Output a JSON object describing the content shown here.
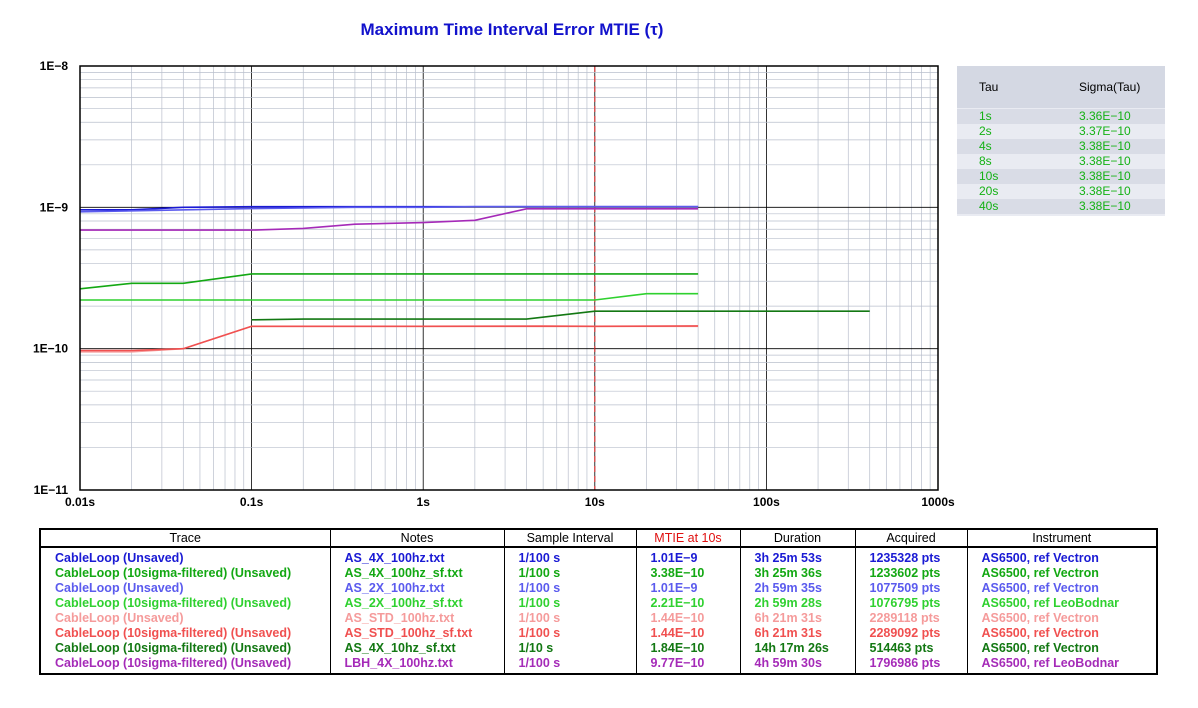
{
  "chart_data": {
    "type": "line",
    "title": "Maximum Time Interval Error MTIE (τ)",
    "xscale": "log",
    "yscale": "log",
    "xlim": [
      0.01,
      1000
    ],
    "ylim": [
      1e-11,
      1e-08
    ],
    "x_tick_labels": [
      "0.01s",
      "0.1s",
      "1s",
      "10s",
      "100s",
      "1000s"
    ],
    "y_tick_labels": [
      "1E−8",
      "1E−9",
      "1E−10",
      "1E−11"
    ],
    "grid": true,
    "marker_x": 10,
    "series": [
      {
        "color": "#1a1ad4",
        "x": [
          0.01,
          0.02,
          0.04,
          0.1,
          1,
          10,
          40
        ],
        "y": [
          9.6e-10,
          9.6e-10,
          1e-09,
          1.01e-09,
          1.01e-09,
          1.01e-09,
          1.01e-09
        ]
      },
      {
        "color": "#13a813",
        "x": [
          0.01,
          0.02,
          0.04,
          0.1,
          1,
          10,
          40
        ],
        "y": [
          2.65e-10,
          2.9e-10,
          2.9e-10,
          3.38e-10,
          3.38e-10,
          3.38e-10,
          3.38e-10
        ]
      },
      {
        "color": "#5b5bee",
        "x": [
          0.01,
          0.1,
          0.2,
          0.4,
          1,
          2,
          10,
          40
        ],
        "y": [
          9.3e-10,
          9.8e-10,
          9.9e-10,
          1e-09,
          1e-09,
          1.01e-09,
          1.01e-09,
          1.01e-09
        ]
      },
      {
        "color": "#2fd12f",
        "x": [
          0.01,
          0.1,
          1,
          10,
          20,
          40
        ],
        "y": [
          2.21e-10,
          2.21e-10,
          2.21e-10,
          2.21e-10,
          2.45e-10,
          2.45e-10
        ]
      },
      {
        "color": "#f59b9b",
        "x": [
          0.01,
          0.02,
          0.04,
          0.1,
          1,
          5,
          10,
          40
        ],
        "y": [
          9.5e-11,
          9.5e-11,
          1e-10,
          1.44e-10,
          1.44e-10,
          1.45e-10,
          1.44e-10,
          1.44e-10
        ]
      },
      {
        "color": "#f05050",
        "x": [
          0.01,
          0.02,
          0.04,
          0.1,
          1,
          4,
          10,
          40
        ],
        "y": [
          9.7e-11,
          9.7e-11,
          1e-10,
          1.44e-10,
          1.44e-10,
          1.44e-10,
          1.44e-10,
          1.45e-10
        ]
      },
      {
        "color": "#137813",
        "x": [
          0.1,
          0.2,
          1,
          4,
          10,
          100,
          400
        ],
        "y": [
          1.6e-10,
          1.62e-10,
          1.62e-10,
          1.62e-10,
          1.84e-10,
          1.84e-10,
          1.84e-10
        ]
      },
      {
        "color": "#a52ab8",
        "x": [
          0.01,
          0.1,
          0.2,
          0.4,
          1,
          2,
          4,
          10,
          40
        ],
        "y": [
          6.9e-10,
          6.9e-10,
          7.1e-10,
          7.6e-10,
          7.8e-10,
          8.1e-10,
          9.77e-10,
          9.77e-10,
          9.77e-10
        ]
      }
    ]
  },
  "sigma_table": {
    "headers": {
      "tau": "Tau",
      "sigma": "Sigma(Tau)"
    },
    "rows": [
      {
        "tau": "1s",
        "sigma": "3.36E−10"
      },
      {
        "tau": "2s",
        "sigma": "3.37E−10"
      },
      {
        "tau": "4s",
        "sigma": "3.38E−10"
      },
      {
        "tau": "8s",
        "sigma": "3.38E−10"
      },
      {
        "tau": "10s",
        "sigma": "3.38E−10"
      },
      {
        "tau": "20s",
        "sigma": "3.38E−10"
      },
      {
        "tau": "40s",
        "sigma": "3.38E−10"
      }
    ],
    "color": "#14b114"
  },
  "traces_table": {
    "headers": {
      "trace": "Trace",
      "notes": "Notes",
      "sample_interval": "Sample Interval",
      "mtie": "MTIE at 10s",
      "duration": "Duration",
      "acquired": "Acquired",
      "instrument": "Instrument"
    },
    "mtie_header_color": "#e01010",
    "rows": [
      {
        "color": "#1a1ad4",
        "trace": "CableLoop (Unsaved)",
        "notes": "AS_4X_100hz.txt",
        "sample_interval": "1/100 s",
        "mtie": "1.01E−9",
        "duration": "3h 25m 53s",
        "acquired": "1235328 pts",
        "instrument": "AS6500, ref Vectron"
      },
      {
        "color": "#13a813",
        "trace": "CableLoop (10sigma-filtered) (Unsaved)",
        "notes": "AS_4X_100hz_sf.txt",
        "sample_interval": "1/100 s",
        "mtie": "3.38E−10",
        "duration": "3h 25m 36s",
        "acquired": "1233602 pts",
        "instrument": "AS6500, ref Vectron"
      },
      {
        "color": "#5b5bee",
        "trace": "CableLoop (Unsaved)",
        "notes": "AS_2X_100hz.txt",
        "sample_interval": "1/100 s",
        "mtie": "1.01E−9",
        "duration": "2h 59m 35s",
        "acquired": "1077509 pts",
        "instrument": "AS6500, ref Vectron"
      },
      {
        "color": "#2fd12f",
        "trace": "CableLoop (10sigma-filtered) (Unsaved)",
        "notes": "AS_2X_100hz_sf.txt",
        "sample_interval": "1/100 s",
        "mtie": "2.21E−10",
        "duration": "2h 59m 28s",
        "acquired": "1076795 pts",
        "instrument": "AS6500, ref LeoBodnar"
      },
      {
        "color": "#f59b9b",
        "trace": "CableLoop (Unsaved)",
        "notes": "AS_STD_100hz.txt",
        "sample_interval": "1/100 s",
        "mtie": "1.44E−10",
        "duration": "6h 21m 31s",
        "acquired": "2289118 pts",
        "instrument": "AS6500, ref Vectron"
      },
      {
        "color": "#f05050",
        "trace": "CableLoop (10sigma-filtered) (Unsaved)",
        "notes": "AS_STD_100hz_sf.txt",
        "sample_interval": "1/100 s",
        "mtie": "1.44E−10",
        "duration": "6h 21m 31s",
        "acquired": "2289092 pts",
        "instrument": "AS6500, ref Vectron"
      },
      {
        "color": "#137813",
        "trace": "CableLoop (10sigma-filtered) (Unsaved)",
        "notes": "AS_4X_10hz_sf.txt",
        "sample_interval": "1/10 s",
        "mtie": "1.84E−10",
        "duration": "14h 17m 26s",
        "acquired": "514463 pts",
        "instrument": "AS6500, ref Vectron"
      },
      {
        "color": "#a52ab8",
        "trace": "CableLoop (10sigma-filtered) (Unsaved)",
        "notes": "LBH_4X_100hz.txt",
        "sample_interval": "1/100 s",
        "mtie": "9.77E−10",
        "duration": "4h 59m 30s",
        "acquired": "1796986 pts",
        "instrument": "AS6500, ref LeoBodnar"
      }
    ]
  }
}
